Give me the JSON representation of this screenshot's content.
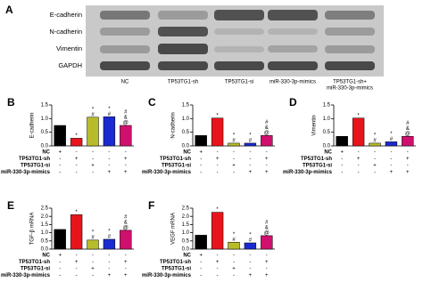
{
  "blot": {
    "panel": "A",
    "rows": [
      "E-cadherin",
      "N-cadherin",
      "Vimentin",
      "GAPDH"
    ],
    "lanes": [
      "NC",
      "TP53TG1-sh",
      "TP53TG1-si",
      "miR-330-3p-mimics"
    ],
    "combined_lane": [
      "TP53TG1-sh+",
      "miR-330-3p-mimics"
    ]
  },
  "conditions": {
    "labels": [
      "NC",
      "TP53TG1-sh",
      "TP53TG1-si",
      "miR-330-3p-mimics"
    ],
    "signs": [
      [
        "+",
        "-",
        "-",
        "-",
        "-"
      ],
      [
        "-",
        "+",
        "-",
        "-",
        "+"
      ],
      [
        "-",
        "-",
        "+",
        "-",
        "-"
      ],
      [
        "-",
        "-",
        "-",
        "+",
        "+"
      ]
    ]
  },
  "chart_data": [
    {
      "type": "bar",
      "panel": "B",
      "ylabel": "E-cadherin",
      "values": [
        0.75,
        0.28,
        1.05,
        1.07,
        0.75
      ],
      "colors": [
        "#000000",
        "#e8141c",
        "#b8bc2a",
        "#1a2ad0",
        "#d0106e"
      ],
      "ylim": [
        0,
        1.5
      ],
      "yticks": [
        {
          "value": 0,
          "label": "0.0"
        },
        {
          "value": 0.5,
          "label": "0.5"
        },
        {
          "value": 1,
          "label": "1.0"
        },
        {
          "value": 1.5,
          "label": "1.5"
        }
      ],
      "annotations": [
        [],
        [
          "*"
        ],
        [
          "*",
          "#"
        ],
        [
          "*",
          "#"
        ],
        [
          "#",
          "&",
          "@"
        ]
      ]
    },
    {
      "type": "bar",
      "panel": "C",
      "ylabel": "N-cadherin",
      "values": [
        0.38,
        1.02,
        0.1,
        0.1,
        0.38
      ],
      "colors": [
        "#000000",
        "#e8141c",
        "#b8bc2a",
        "#1a2ad0",
        "#d0106e"
      ],
      "ylim": [
        0,
        1.5
      ],
      "yticks": [
        {
          "value": 0,
          "label": "0.0"
        },
        {
          "value": 0.5,
          "label": "0.5"
        },
        {
          "value": 1,
          "label": "1.0"
        },
        {
          "value": 1.5,
          "label": "1.5"
        }
      ],
      "annotations": [
        [],
        [
          "*"
        ],
        [
          "*",
          "#"
        ],
        [
          "*",
          "#"
        ],
        [
          "#",
          "&",
          "@"
        ]
      ]
    },
    {
      "type": "bar",
      "panel": "D",
      "ylabel": "Vimentin",
      "values": [
        0.35,
        1.02,
        0.1,
        0.15,
        0.35
      ],
      "colors": [
        "#000000",
        "#e8141c",
        "#b8bc2a",
        "#1a2ad0",
        "#d0106e"
      ],
      "ylim": [
        0,
        1.5
      ],
      "yticks": [
        {
          "value": 0,
          "label": "0.0"
        },
        {
          "value": 0.5,
          "label": "0.5"
        },
        {
          "value": 1,
          "label": "1.0"
        },
        {
          "value": 1.5,
          "label": "1.5"
        }
      ],
      "annotations": [
        [],
        [
          "*"
        ],
        [
          "*",
          "#"
        ],
        [
          "*",
          "#"
        ],
        [
          "#",
          "&",
          "@"
        ]
      ]
    },
    {
      "type": "bar",
      "panel": "E",
      "ylabel": "TGF-β mRNA",
      "values": [
        1.2,
        2.1,
        0.55,
        0.6,
        1.15
      ],
      "colors": [
        "#000000",
        "#e8141c",
        "#b8bc2a",
        "#1a2ad0",
        "#d0106e"
      ],
      "ylim": [
        0,
        2.5
      ],
      "yticks": [
        {
          "value": 0,
          "label": "0.0"
        },
        {
          "value": 0.5,
          "label": "0.5"
        },
        {
          "value": 1,
          "label": "1.0"
        },
        {
          "value": 1.5,
          "label": "1.5"
        },
        {
          "value": 2,
          "label": "2.0"
        },
        {
          "value": 2.5,
          "label": "2.5"
        }
      ],
      "annotations": [
        [],
        [
          "*"
        ],
        [
          "*",
          "#"
        ],
        [
          "*",
          "#"
        ],
        [
          "#",
          "&",
          "@"
        ]
      ]
    },
    {
      "type": "bar",
      "panel": "F",
      "ylabel": "VEGF mRNA",
      "values": [
        0.85,
        2.25,
        0.42,
        0.38,
        0.82
      ],
      "colors": [
        "#000000",
        "#e8141c",
        "#b8bc2a",
        "#1a2ad0",
        "#d0106e"
      ],
      "ylim": [
        0,
        2.5
      ],
      "yticks": [
        {
          "value": 0,
          "label": "0.0"
        },
        {
          "value": 0.5,
          "label": "0.5"
        },
        {
          "value": 1,
          "label": "1.0"
        },
        {
          "value": 1.5,
          "label": "1.5"
        },
        {
          "value": 2,
          "label": "2.0"
        },
        {
          "value": 2.5,
          "label": "2.5"
        }
      ],
      "annotations": [
        [],
        [
          "*"
        ],
        [
          "*",
          "#"
        ],
        [
          "*",
          "#"
        ],
        [
          "#",
          "&",
          "@"
        ]
      ]
    }
  ]
}
